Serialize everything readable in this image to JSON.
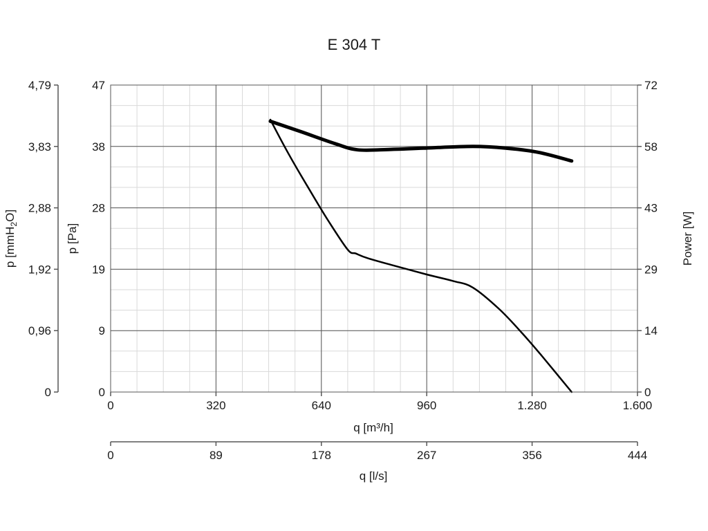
{
  "chart_data": {
    "type": "line",
    "title": "E 304 T",
    "x_axis": {
      "label": "q [m³/h]",
      "ticks": [
        "0",
        "320",
        "640",
        "960",
        "1.280",
        "1.600"
      ],
      "range": [
        0,
        1600
      ]
    },
    "x2_axis": {
      "label": "q [l/s]",
      "ticks": [
        "0",
        "89",
        "178",
        "267",
        "356",
        "444"
      ],
      "range": [
        0,
        444
      ]
    },
    "y_axis": {
      "label": "p [Pa]",
      "ticks": [
        "0",
        "9",
        "19",
        "28",
        "38",
        "47"
      ],
      "range": [
        0,
        47
      ]
    },
    "y_outer_axis": {
      "label_prefix": "p [mmH",
      "label_sub": "2",
      "label_suffix": "O]",
      "ticks": [
        "0",
        "0,96",
        "1,92",
        "2,88",
        "3,83",
        "4,79"
      ],
      "range": [
        0,
        4.79
      ]
    },
    "y_right_axis": {
      "label": "Power [W]",
      "ticks": [
        "0",
        "14",
        "29",
        "43",
        "58",
        "72"
      ],
      "range": [
        0,
        72
      ]
    },
    "grid": true,
    "series": [
      {
        "axis": "left",
        "x": [
          485,
          540,
          600,
          660,
          720,
          745,
          780,
          850,
          960,
          1040,
          1100,
          1180,
          1250,
          1310,
          1400
        ],
        "y": [
          41.7,
          36.5,
          31.3,
          26.3,
          21.8,
          21.2,
          20.5,
          19.5,
          18.0,
          17.0,
          16.0,
          12.7,
          9.0,
          5.5,
          0
        ]
      },
      {
        "axis": "right",
        "line_weight": "heavy",
        "x": [
          485,
          580,
          680,
          750,
          850,
          950,
          1100,
          1200,
          1300,
          1400
        ],
        "y": [
          63.5,
          61.0,
          58.3,
          56.8,
          56.9,
          57.2,
          57.6,
          57.2,
          56.2,
          54.2
        ]
      }
    ]
  }
}
